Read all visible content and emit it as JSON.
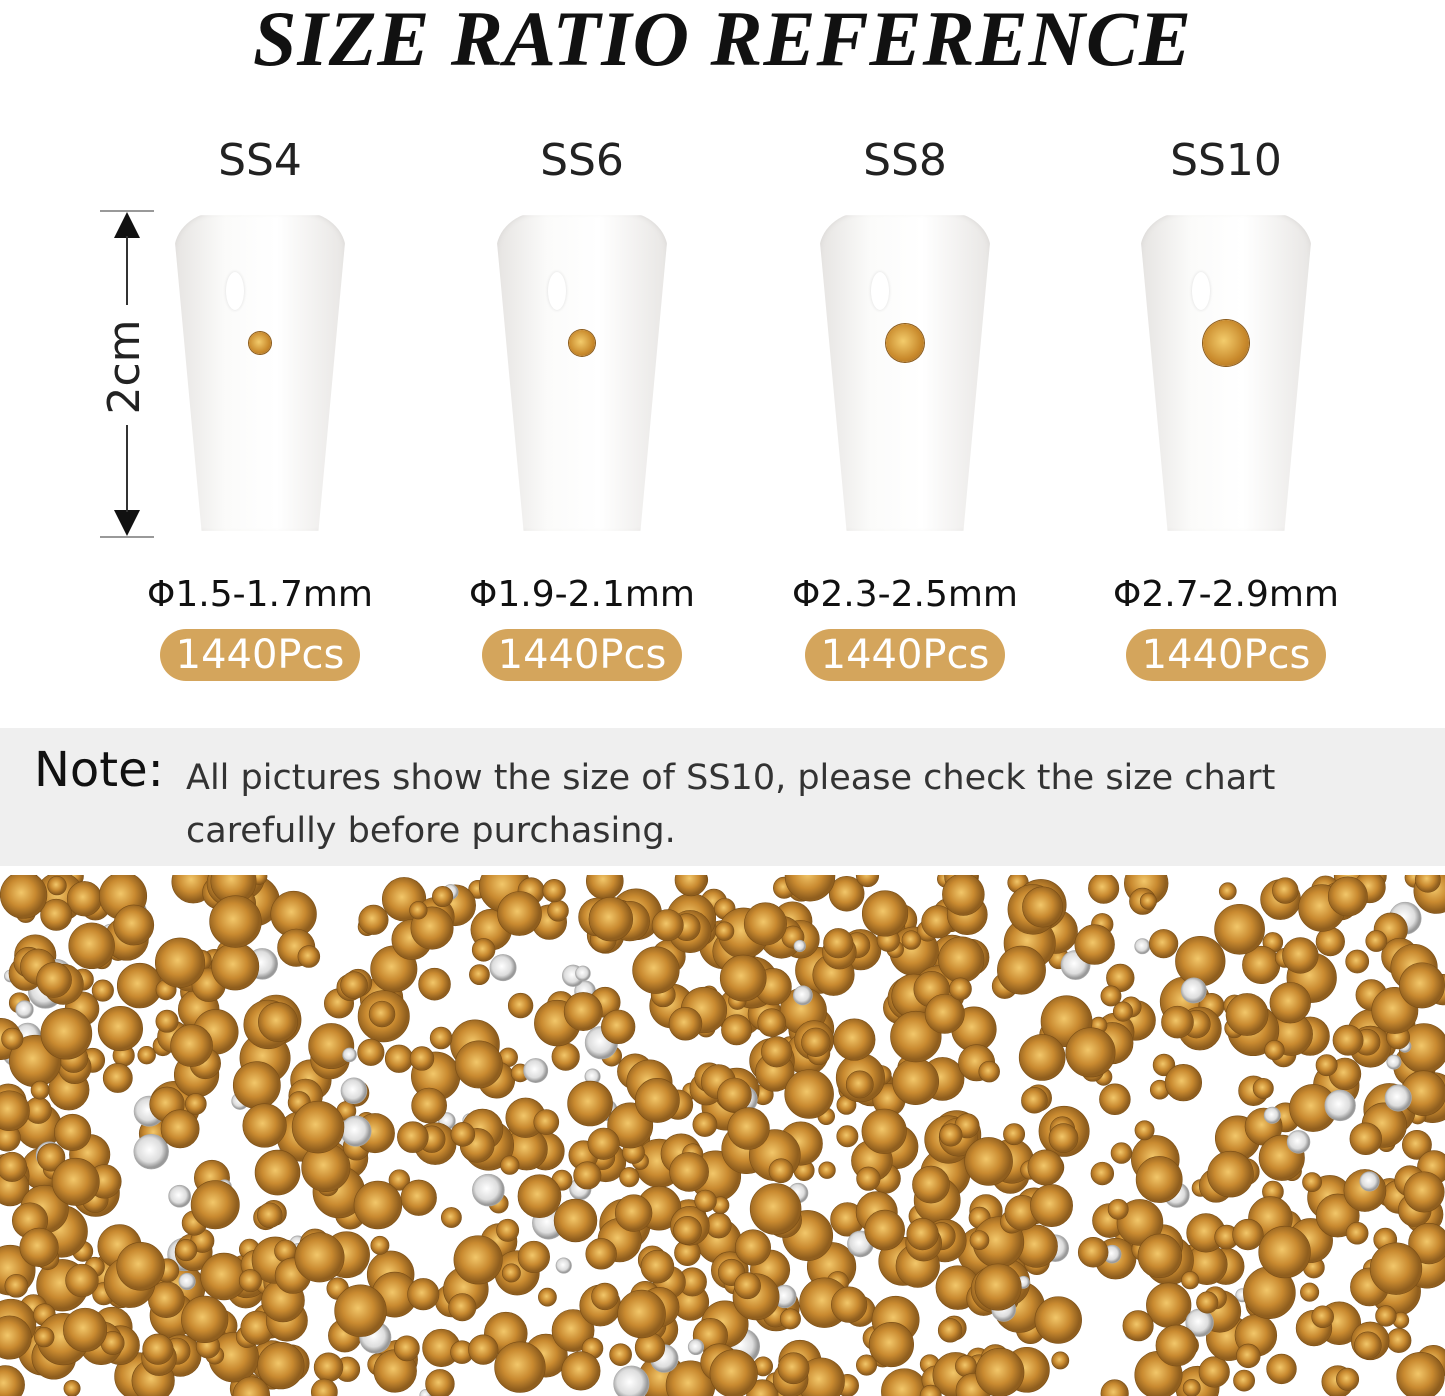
{
  "title": "SIZE RATIO REFERENCE",
  "height_label": "2cm",
  "sizes": [
    {
      "label": "SS4",
      "diameter": "Φ1.5-1.7mm",
      "count": "1440Pcs"
    },
    {
      "label": "SS6",
      "diameter": "Φ1.9-2.1mm",
      "count": "1440Pcs"
    },
    {
      "label": "SS8",
      "diameter": "Φ2.3-2.5mm",
      "count": "1440Pcs"
    },
    {
      "label": "SS10",
      "diameter": "Φ2.7-2.9mm",
      "count": "1440Pcs"
    }
  ],
  "note": {
    "label": "Note:",
    "text": "All pictures show the size of SS10, please check the size chart carefully before purchasing."
  },
  "colors": {
    "badge": "#d4a55c",
    "gem": "#c98a2c",
    "note_bg": "#efefef"
  }
}
